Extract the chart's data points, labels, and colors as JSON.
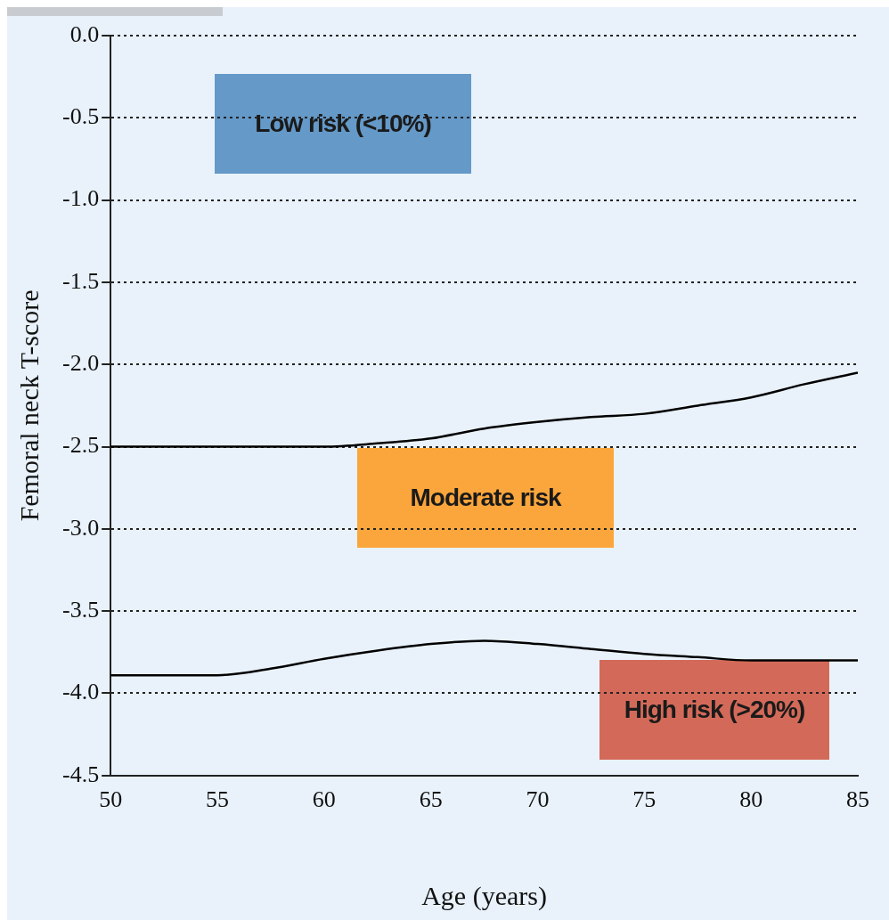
{
  "chart_data": {
    "type": "line",
    "xlabel": "Age (years)",
    "ylabel": "Femoral neck T-score",
    "xlim": [
      50,
      85
    ],
    "xticks": [
      50,
      55,
      60,
      65,
      70,
      75,
      80,
      85
    ],
    "ylim": [
      -4.5,
      0
    ],
    "yticks": [
      {
        "value": 0,
        "label": "0.0"
      },
      -0.5,
      {
        "value": -1,
        "label": "-1.0"
      },
      -1.5,
      {
        "value": -2,
        "label": "-2.0"
      },
      -2.5,
      {
        "value": -3,
        "label": "-3.0"
      },
      -3.5,
      {
        "value": -4,
        "label": "-4.0"
      },
      -4.5
    ],
    "grid": "y",
    "line_style": "solid",
    "series": [
      {
        "color": "#000000",
        "x": [
          50,
          55,
          60,
          62.5,
          65,
          67.5,
          70,
          72.5,
          75,
          77.5,
          80,
          82.5,
          85
        ],
        "values": [
          -2.5,
          -2.5,
          -2.5,
          -2.48,
          -2.45,
          -2.39,
          -2.35,
          -2.32,
          -2.3,
          -2.25,
          -2.2,
          -2.12,
          -2.05
        ]
      },
      {
        "color": "#000000",
        "x": [
          50,
          55,
          57.5,
          60,
          62.5,
          65,
          67.5,
          70,
          72.5,
          75,
          77.5,
          80,
          85
        ],
        "values": [
          -3.89,
          -3.89,
          -3.85,
          -3.79,
          -3.74,
          -3.7,
          -3.68,
          -3.7,
          -3.73,
          -3.76,
          -3.78,
          -3.8,
          -3.8
        ]
      }
    ],
    "annotations": [
      "Low risk (<10%)",
      "Moderate risk",
      "High risk (>20%)"
    ]
  }
}
